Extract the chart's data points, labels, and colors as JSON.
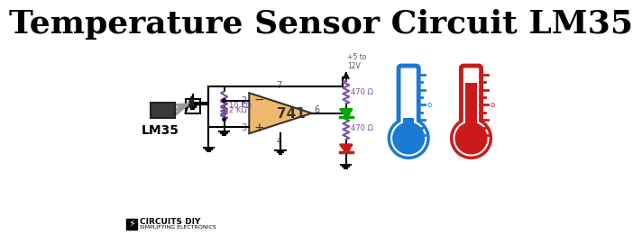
{
  "title": "Temperature Sensor Circuit LM35",
  "title_fontsize": 26,
  "title_fontweight": "bold",
  "background_color": "#ffffff",
  "text_color": "#000000",
  "blue_color": "#1a7ad4",
  "red_color": "#cc1a1a",
  "green_color": "#00aa00",
  "opamp_color": "#f0b86e",
  "resistor_color": "#7b4fa0",
  "wire_color": "#000000",
  "logo_text": "CIRCUITS DIY",
  "logo_subtext": "SIMPLIFYING ELECTRONICS",
  "lm35_label": "LM35",
  "opamp_label": "741",
  "r1_label": "10 KΩ",
  "r2_label": "2 KΩ",
  "r3_label": "470 Ω",
  "r4_label": "470 Ω",
  "vcc_label": "+5 to\n12V",
  "pin2": "2",
  "pin3": "3",
  "pin4": "4",
  "pin6": "6",
  "pin7": "7",
  "minus_sign": "−",
  "plus_sign": "+"
}
